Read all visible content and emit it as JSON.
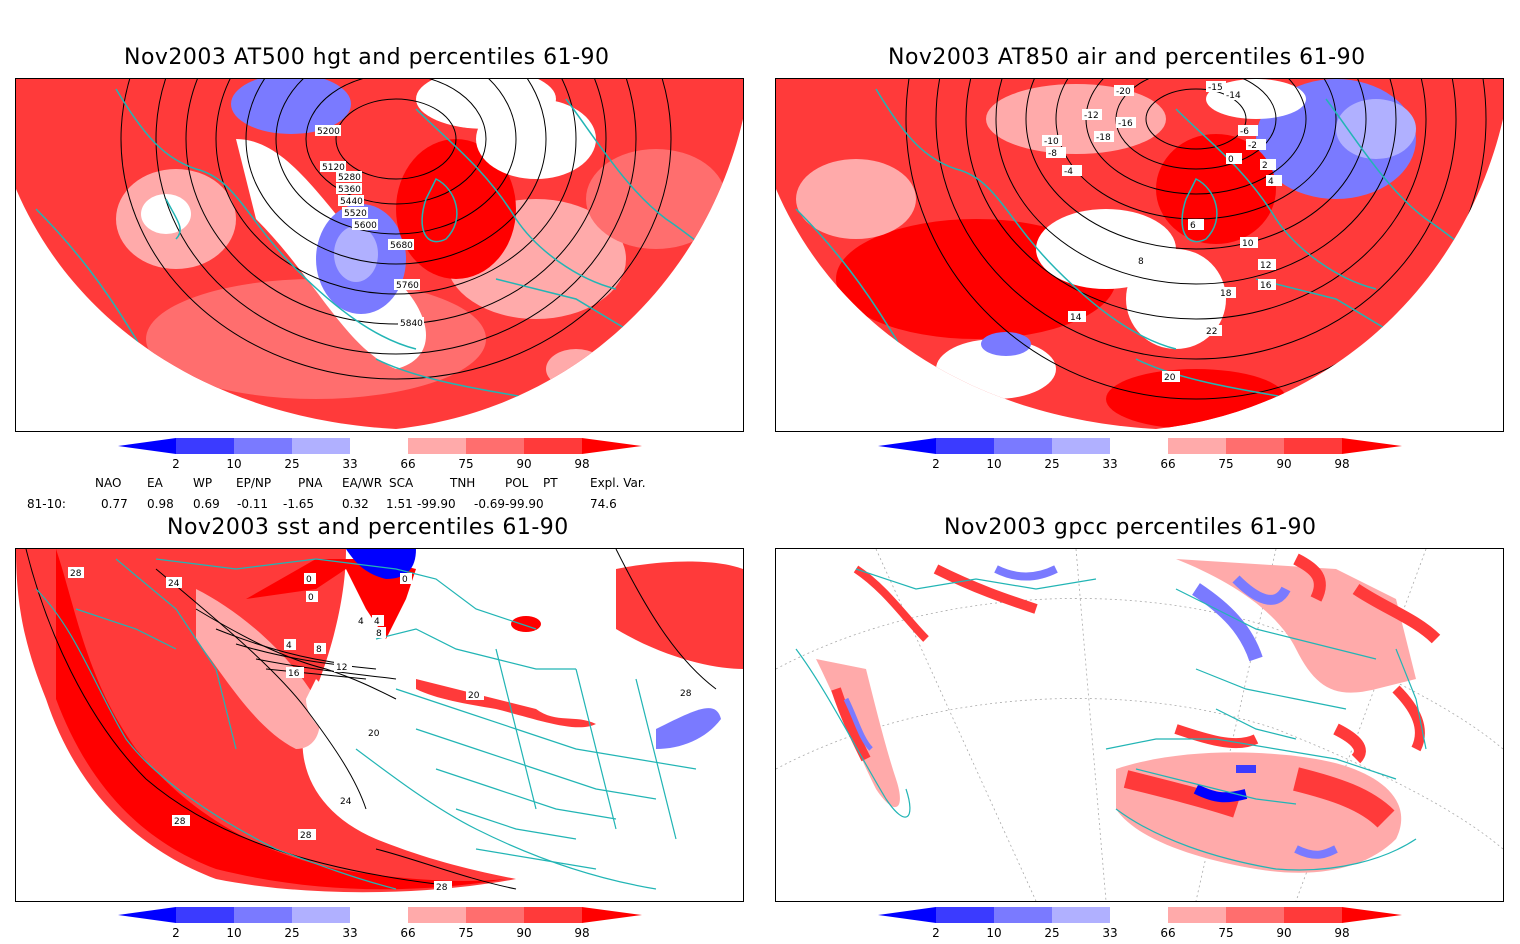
{
  "panels": [
    {
      "title": "Nov2003 AT500 hgt and percentiles 61-90",
      "contours": [
        "5120",
        "5200",
        "5280",
        "5360",
        "5440",
        "5520",
        "5600",
        "5680",
        "5760",
        "5840"
      ]
    },
    {
      "title": "Nov2003 AT850 air and percentiles 61-90",
      "contours": [
        "-20",
        "-18",
        "-16",
        "-15",
        "-14",
        "-12",
        "-10",
        "-8",
        "-6",
        "-4",
        "-2",
        "0",
        "2",
        "4",
        "6",
        "8",
        "10",
        "12",
        "14",
        "16",
        "18",
        "20",
        "22"
      ]
    },
    {
      "title": "Nov2003 sst and percentiles 61-90",
      "contours": [
        "0",
        "4",
        "8",
        "12",
        "16",
        "20",
        "24",
        "28"
      ]
    },
    {
      "title": "Nov2003 gpcc percentiles 61-90",
      "contours": []
    }
  ],
  "colorbar": {
    "ticks": [
      "2",
      "10",
      "25",
      "33",
      "66",
      "75",
      "90",
      "98"
    ],
    "colors": [
      "#0000ff",
      "#3b3bff",
      "#7a7aff",
      "#b0b0ff",
      "#ffffff",
      "#ffaaaa",
      "#ff6e6e",
      "#ff3a3a",
      "#ff0000"
    ]
  },
  "indices": {
    "headers": [
      "NAO",
      "EA",
      "WP",
      "EP/NP",
      "PNA",
      "EA/WR",
      "SCA",
      "TNH",
      "POL",
      "PT",
      "Expl. Var."
    ],
    "row_label": "81-10:",
    "values": [
      "0.77",
      "0.98",
      "0.69",
      "-0.11",
      "-1.65",
      "0.32",
      "1.51",
      "-99.90",
      "-0.69",
      "-99.90",
      "74.6"
    ]
  },
  "map_colors": {
    "ocean_line": "#22b5b5",
    "red": "#ff3a3a",
    "pink": "#ffaaaa",
    "blue": "#7a7aff"
  }
}
